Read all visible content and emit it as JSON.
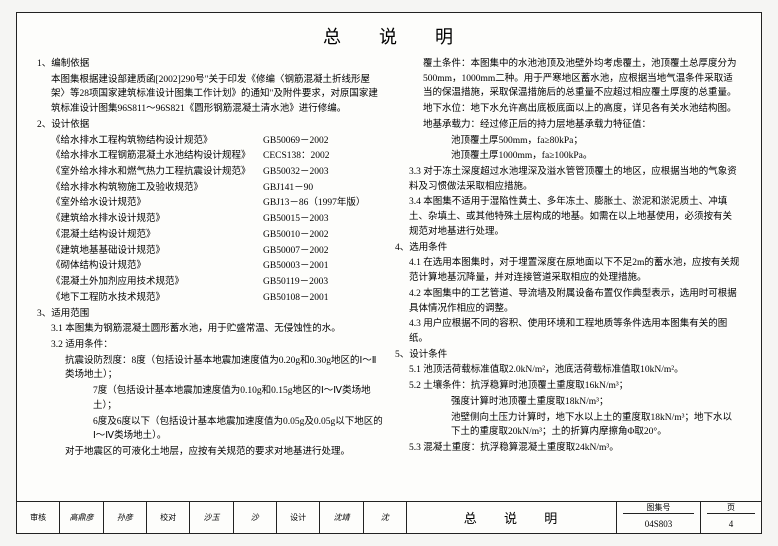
{
  "title": "总说明",
  "left": {
    "s1_head": "1、编制依据",
    "s1_body": "本图集根据建设部建质函[2002]290号\"关于印发《修编〈钢筋混凝土折线形屋架〉等28项国家建筑标准设计图集工作计划》的通知\"及附件要求，对原国家建筑标准设计图集96S811～96S821《圆形钢筋混凝土清水池》进行修编。",
    "s2_head": "2、设计依据",
    "specs": [
      {
        "name": "《给水排水工程构筑物结构设计规范》",
        "code": "GB50069－2002"
      },
      {
        "name": "《给水排水工程钢筋混凝土水池结构设计规程》",
        "code": "CECS138：2002"
      },
      {
        "name": "《室外给水排水和燃气热力工程抗震设计规范》",
        "code": "GB50032－2003"
      },
      {
        "name": "《给水排水构筑物施工及验收规范》",
        "code": "GBJ141－90"
      },
      {
        "name": "《室外给水设计规范》",
        "code": "GBJ13－86（1997年版）"
      },
      {
        "name": "《建筑给水排水设计规范》",
        "code": "GB50015－2003"
      },
      {
        "name": "《混凝土结构设计规范》",
        "code": "GB50010－2002"
      },
      {
        "name": "《建筑地基基础设计规范》",
        "code": "GB50007－2002"
      },
      {
        "name": "《砌体结构设计规范》",
        "code": "GB50003－2001"
      },
      {
        "name": "《混凝土外加剂应用技术规范》",
        "code": "GB50119－2003"
      },
      {
        "name": "《地下工程防水技术规范》",
        "code": "GB50108－2001"
      }
    ],
    "s3_head": "3、适用范围",
    "s3_1": "3.1 本图集为钢筋混凝土圆形蓄水池，用于贮盛常温、无侵蚀性的水。",
    "s3_2": "3.2 适用条件：",
    "s3_2a": "抗震设防烈度：8度（包括设计基本地震加速度值为0.20g和0.30g地区的Ⅰ～Ⅱ类场地土）；",
    "s3_2b": "7度（包括设计基本地震加速度值为0.10g和0.15g地区的Ⅰ～Ⅳ类场地土）；",
    "s3_2c": "6度及6度以下（包括设计基本地震加速度值为0.05g及0.05g以下地区的Ⅰ～Ⅳ类场地土）。",
    "s3_2d": "对于地震区的可液化土地层，应按有关规范的要求对地基进行处理。"
  },
  "right": {
    "r1a": "覆土条件：本图集中的水池池顶及池壁外均考虑覆土，池顶覆土总厚度分为500mm，1000mm二种。用于严寒地区蓄水池，应根据当地气温条件采取适当的保温措施，采取保温措施后的总重量不应超过相应覆土厚度的总重量。",
    "r1b": "地下水位：地下水允许高出底板底面以上的高度，详见各有关水池结构图。",
    "r1c": "地基承载力：经过修正后的持力层地基承载力特征值：",
    "r1c1": "池顶覆土厚500mm，fa≥80kPa；",
    "r1c2": "池顶覆土厚1000mm，fa≥100kPa。",
    "r3_3": "3.3 对于冻土深度超过水池埋深及溢水管管顶覆土的地区，应根据当地的气象资料及习惯做法采取相应措施。",
    "r3_4": "3.4 本图集不适用于湿陷性黄土、多年冻土、膨胀土、淤泥和淤泥质土、冲填土、杂填土、或其他特殊土层构成的地基。如需在以上地基使用，必须按有关规范对地基进行处理。",
    "s4_head": "4、选用条件",
    "r4_1": "4.1 在选用本图集时，对于埋置深度在原地面以下不足2m的蓄水池，应按有关规范计算地基沉降量，并对连接管道采取相应的处理措施。",
    "r4_2": "4.2 本图集中的工艺管道、导流墙及附属设备布置仅作典型表示，选用时可根据具体情况作相应的调整。",
    "r4_3": "4.3 用户应根据不同的容积、使用环境和工程地质等条件选用本图集有关的图纸。",
    "s5_head": "5、设计条件",
    "r5_1": "5.1 池顶活荷载标准值取2.0kN/m²，池底活荷载标准值取10kN/m²。",
    "r5_2": "5.2 土壤条件：抗浮稳算时池顶覆土重度取16kN/m³；",
    "r5_2a": "强度计算时池顶覆土重度取18kN/m³；",
    "r5_2b": "池壁侧向土压力计算时，地下水以上土的重度取18kN/m³；地下水以下土的重度取20kN/m³；土的折算内摩擦角Φ取20°。",
    "r5_3": "5.3 混凝土重度：抗浮稳算混凝土重度取24kN/m³。"
  },
  "footer": {
    "title": "总 说 明",
    "set_lab": "图集号",
    "set_val": "04S803",
    "page_lab": "页",
    "page_val": "4",
    "sig1": "审核",
    "sig2": "高鼎彦",
    "sig3": "校对",
    "sig4": "沙玉",
    "sig5": "设计",
    "sig6": "沈靖"
  }
}
